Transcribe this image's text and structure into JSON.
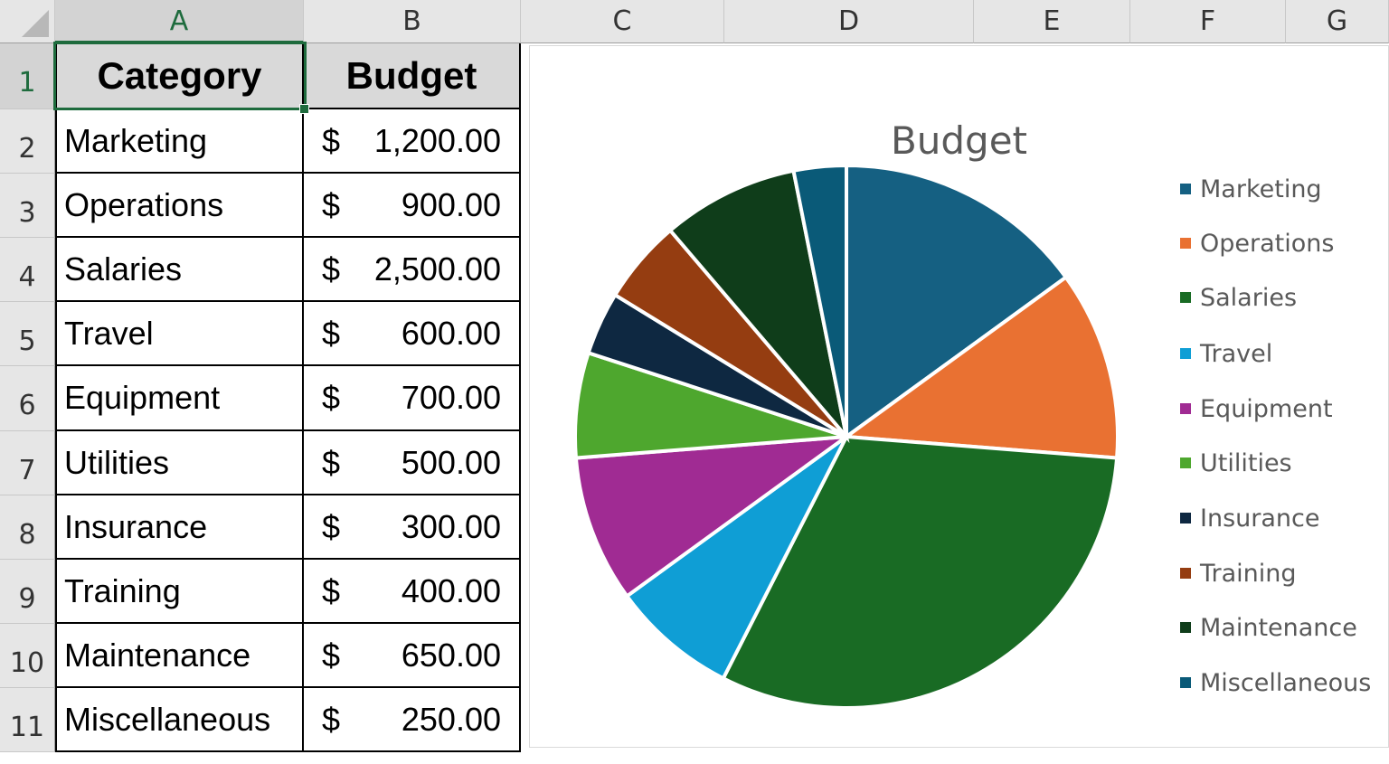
{
  "columns": [
    "A",
    "B",
    "C",
    "D",
    "E",
    "F",
    "G"
  ],
  "rows": [
    "1",
    "2",
    "3",
    "4",
    "5",
    "6",
    "7",
    "8",
    "9",
    "10",
    "11"
  ],
  "table": {
    "headers": [
      "Category",
      "Budget"
    ],
    "currency_symbol": "$",
    "rows": [
      {
        "category": "Marketing",
        "amount": "1,200.00"
      },
      {
        "category": "Operations",
        "amount": "900.00"
      },
      {
        "category": "Salaries",
        "amount": "2,500.00"
      },
      {
        "category": "Travel",
        "amount": "600.00"
      },
      {
        "category": "Equipment",
        "amount": "700.00"
      },
      {
        "category": "Utilities",
        "amount": "500.00"
      },
      {
        "category": "Insurance",
        "amount": "300.00"
      },
      {
        "category": "Training",
        "amount": "400.00"
      },
      {
        "category": "Maintenance",
        "amount": "650.00"
      },
      {
        "category": "Miscellaneous",
        "amount": "250.00"
      }
    ]
  },
  "selection": {
    "cell": "A1",
    "color": "#1e6b3d"
  },
  "chart_data": {
    "type": "pie",
    "title": "Budget",
    "categories": [
      "Marketing",
      "Operations",
      "Salaries",
      "Travel",
      "Equipment",
      "Utilities",
      "Insurance",
      "Training",
      "Maintenance",
      "Miscellaneous"
    ],
    "values": [
      1200,
      900,
      2500,
      600,
      700,
      500,
      300,
      400,
      650,
      250
    ],
    "colors": [
      "#156082",
      "#e97132",
      "#196b24",
      "#0f9ed5",
      "#a02b93",
      "#4ea72e",
      "#0e2841",
      "#953d11",
      "#0f3d1a",
      "#0a5a78"
    ],
    "legend_position": "right"
  }
}
